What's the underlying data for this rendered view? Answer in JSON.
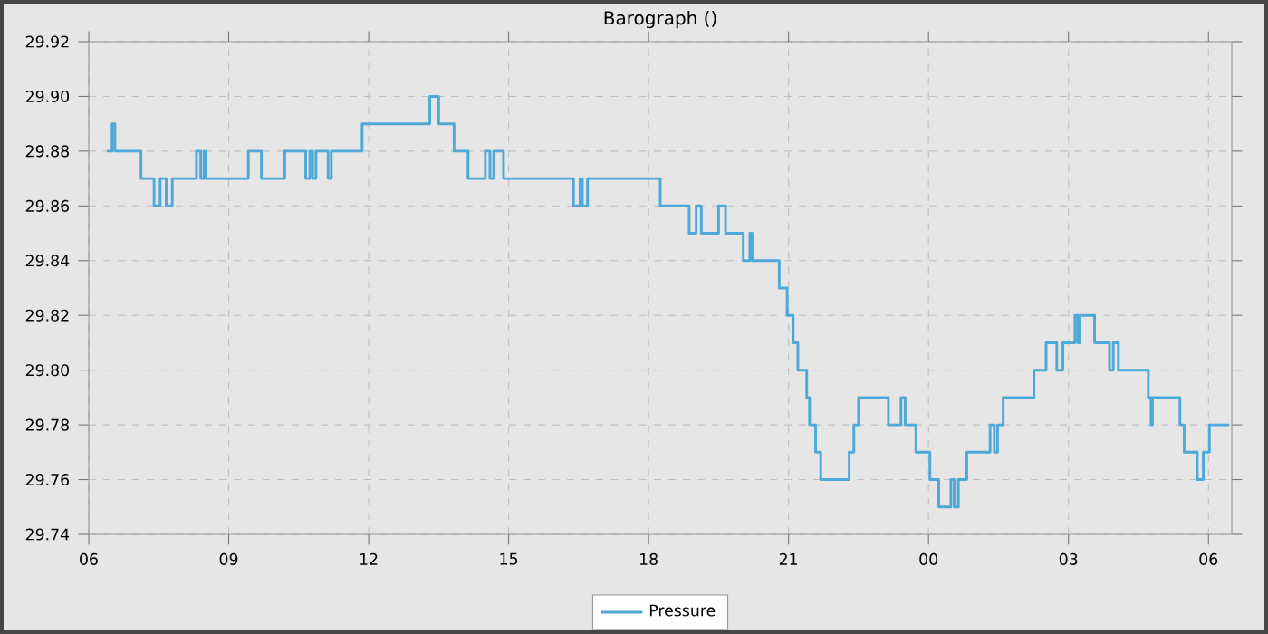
{
  "chart_data": {
    "type": "step",
    "title": "Barograph ()",
    "x": [
      6.39,
      6.5,
      6.56,
      7.12,
      7.4,
      7.53,
      7.66,
      7.79,
      8.31,
      8.4,
      8.47,
      8.5,
      9.42,
      9.7,
      10.2,
      10.65,
      10.74,
      10.8,
      10.87,
      11.13,
      11.2,
      11.86,
      13.31,
      13.5,
      13.83,
      14.13,
      14.5,
      14.6,
      14.68,
      14.89,
      16.39,
      16.53,
      16.58,
      16.69,
      18.25,
      18.87,
      19.02,
      19.13,
      19.5,
      19.65,
      20.03,
      20.17,
      20.22,
      20.8,
      20.97,
      21.1,
      21.2,
      21.39,
      21.45,
      21.58,
      21.69,
      22.3,
      22.4,
      22.5,
      23.14,
      23.41,
      23.5,
      23.73,
      24.03,
      24.22,
      24.48,
      24.55,
      24.64,
      24.82,
      25.32,
      25.41,
      25.48,
      25.6,
      26.26,
      26.52,
      26.75,
      26.88,
      27.14,
      27.2,
      27.24,
      27.56,
      27.88,
      27.96,
      28.07,
      28.71,
      28.77,
      28.8,
      29.39,
      29.48,
      29.76,
      29.89,
      30.02,
      30.45
    ],
    "series": [
      {
        "name": "Pressure",
        "color": "#4ea8d8",
        "values": [
          29.88,
          29.89,
          29.88,
          29.87,
          29.86,
          29.87,
          29.86,
          29.87,
          29.88,
          29.87,
          29.88,
          29.87,
          29.88,
          29.87,
          29.88,
          29.87,
          29.88,
          29.87,
          29.88,
          29.87,
          29.88,
          29.89,
          29.9,
          29.89,
          29.88,
          29.87,
          29.88,
          29.87,
          29.88,
          29.87,
          29.86,
          29.87,
          29.86,
          29.87,
          29.86,
          29.85,
          29.86,
          29.85,
          29.86,
          29.85,
          29.84,
          29.85,
          29.84,
          29.83,
          29.82,
          29.81,
          29.8,
          29.79,
          29.78,
          29.77,
          29.76,
          29.77,
          29.78,
          29.79,
          29.78,
          29.79,
          29.78,
          29.77,
          29.76,
          29.75,
          29.76,
          29.75,
          29.76,
          29.77,
          29.78,
          29.77,
          29.78,
          29.79,
          29.8,
          29.81,
          29.8,
          29.81,
          29.82,
          29.81,
          29.82,
          29.81,
          29.8,
          29.81,
          29.8,
          29.79,
          29.78,
          29.79,
          29.78,
          29.77,
          29.76,
          29.77,
          29.78,
          29.78
        ]
      }
    ],
    "xlim": [
      6,
      30.5
    ],
    "xticks": [
      {
        "value": 6,
        "label": "06"
      },
      {
        "value": 9,
        "label": "09"
      },
      {
        "value": 12,
        "label": "12"
      },
      {
        "value": 15,
        "label": "15"
      },
      {
        "value": 18,
        "label": "18"
      },
      {
        "value": 21,
        "label": "21"
      },
      {
        "value": 24,
        "label": "00"
      },
      {
        "value": 27,
        "label": "03"
      },
      {
        "value": 30,
        "label": "06"
      }
    ],
    "ylim": [
      29.74,
      29.92
    ],
    "yticks": [
      {
        "value": 29.74,
        "label": "29.74"
      },
      {
        "value": 29.76,
        "label": "29.76"
      },
      {
        "value": 29.78,
        "label": "29.78"
      },
      {
        "value": 29.8,
        "label": "29.80"
      },
      {
        "value": 29.82,
        "label": "29.82"
      },
      {
        "value": 29.84,
        "label": "29.84"
      },
      {
        "value": 29.86,
        "label": "29.86"
      },
      {
        "value": 29.88,
        "label": "29.88"
      },
      {
        "value": 29.9,
        "label": "29.90"
      },
      {
        "value": 29.92,
        "label": "29.92"
      }
    ],
    "grid": true,
    "legend": "bottom",
    "line_style": "solid"
  }
}
